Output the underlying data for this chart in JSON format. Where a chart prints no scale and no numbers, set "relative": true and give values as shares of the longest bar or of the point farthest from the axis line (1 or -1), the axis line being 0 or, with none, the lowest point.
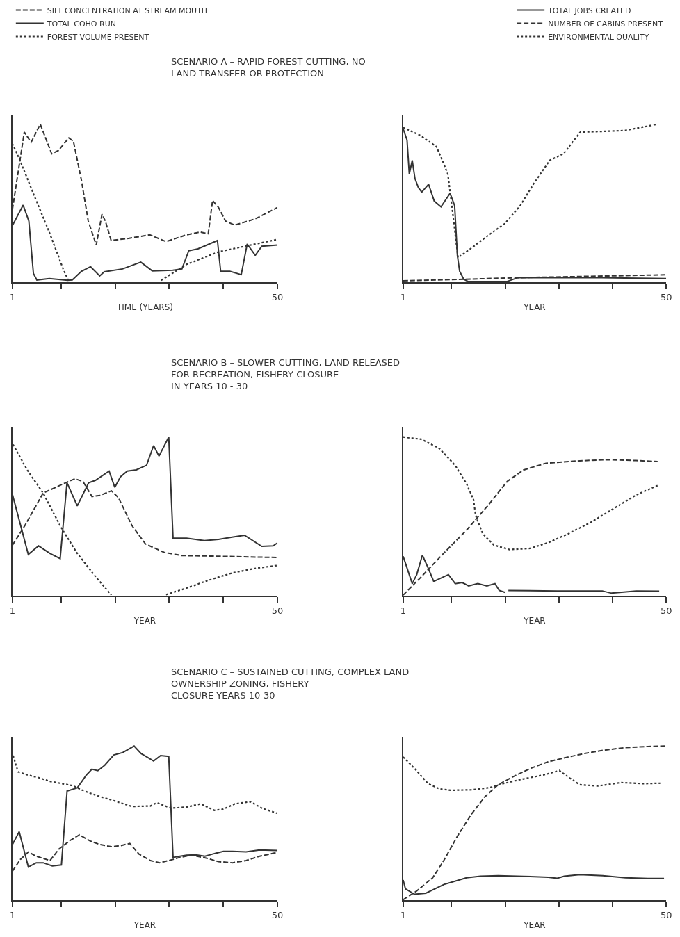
{
  "chart_data": [
    {
      "type": "line",
      "title": "SCENARIO A – RAPID FOREST CUTTING, NO\nLAND TRANSFER OR PROTECTION",
      "xlabel": "TIME (YEARS)",
      "relative": true,
      "xlim": [
        1,
        50
      ],
      "xticks": [
        1,
        {
          "value": 10,
          "label": null
        },
        {
          "value": 20,
          "label": null
        },
        {
          "value": 30,
          "label": null
        },
        {
          "value": 40,
          "label": null
        },
        50
      ],
      "tick_labels": "x",
      "legend": "top left",
      "series": [
        {
          "name": "SILT CONCENTRATION AT STREAM MOUTH",
          "color": "#333333",
          "line_style": "dashed",
          "x": [
            1,
            3.2,
            4.46,
            6.15,
            8.27,
            9.53,
            11.43,
            12.28,
            13.76,
            15.02,
            16.5,
            17.56,
            18.19,
            19.25,
            22.6,
            26.4,
            29.4,
            33.2,
            35.7,
            37.2,
            38.0,
            39.1,
            40.4,
            42.1,
            45.9,
            50
          ],
          "values": [
            0.459,
            0.95,
            0.885,
            1.0,
            0.812,
            0.834,
            0.913,
            0.892,
            0.646,
            0.387,
            0.235,
            0.43,
            0.387,
            0.264,
            0.278,
            0.3,
            0.257,
            0.3,
            0.317,
            0.307,
            0.517,
            0.473,
            0.387,
            0.361,
            0.401,
            0.473
          ]
        },
        {
          "name": "TOTAL COHO RUN",
          "color": "#333333",
          "line_style": "solid",
          "x": [
            1,
            2.99,
            4.04,
            4.89,
            5.52,
            7.84,
            11.22,
            12.07,
            13.76,
            15.45,
            17.14,
            17.98,
            21.36,
            24.74,
            26.85,
            30.65,
            32.34,
            33.6,
            35.3,
            38.9,
            39.5,
            41.2,
            43.3,
            44.4,
            45.9,
            47.1,
            50
          ],
          "values": [
            0.358,
            0.488,
            0.387,
            0.055,
            0.014,
            0.023,
            0.012,
            0.014,
            0.069,
            0.098,
            0.04,
            0.066,
            0.084,
            0.127,
            0.072,
            0.076,
            0.084,
            0.199,
            0.211,
            0.264,
            0.069,
            0.069,
            0.048,
            0.242,
            0.17,
            0.228,
            0.235
          ]
        },
        {
          "name": "FOREST VOLUME PRESENT",
          "color": "#333333",
          "line_style": "dotted",
          "x": [
            1,
            2.35,
            4.89,
            7.84,
            10.38,
            11.43,
            20,
            28.5,
            33.2,
            39.1,
            50
          ],
          "values": [
            0.877,
            0.776,
            0.56,
            0.315,
            0.084,
            0.004,
            null,
            0.012,
            0.113,
            0.192,
            0.271
          ]
        }
      ]
    },
    {
      "type": "line",
      "xlabel": "YEAR",
      "relative": true,
      "xlim": [
        1,
        50
      ],
      "xticks": [
        1,
        {
          "value": 10,
          "label": null
        },
        {
          "value": 20,
          "label": null
        },
        {
          "value": 30,
          "label": null
        },
        {
          "value": 40,
          "label": null
        },
        50
      ],
      "tick_labels": "x",
      "legend": "top right",
      "series": [
        {
          "name": "TOTAL JOBS CREATED",
          "color": "#333333",
          "line_style": "solid",
          "x": [
            1,
            1.72,
            2.14,
            2.69,
            3.2,
            3.83,
            4.46,
            5.73,
            6.79,
            8.05,
            9.74,
            10.59,
            11.1,
            11.52,
            12.28,
            13.12,
            20.3,
            22.4,
            29.6,
            38.0,
            42.3,
            50
          ],
          "values": [
            0.971,
            0.9,
            0.685,
            0.771,
            0.656,
            0.599,
            0.57,
            0.62,
            0.513,
            0.477,
            0.563,
            0.484,
            0.169,
            0.069,
            0.019,
            0.004,
            0.004,
            0.029,
            0.029,
            0.029,
            0.026,
            0.023
          ]
        },
        {
          "name": "NUMBER OF CABINS PRESENT",
          "color": "#333333",
          "line_style": "dashed",
          "x": [
            1,
            12.7,
            22.8,
            50
          ],
          "values": [
            0.009,
            0.019,
            0.029,
            0.047
          ]
        },
        {
          "name": "ENVIRONMENTAL QUALITY",
          "color": "#333333",
          "line_style": "dotted",
          "x": [
            1,
            4.25,
            7.21,
            8.48,
            9.32,
            10.17,
            11.22,
            13.55,
            16.9,
            19.9,
            22.8,
            25.4,
            28.3,
            30.9,
            34.0,
            38.0,
            42.3,
            48.4
          ],
          "values": [
            0.979,
            0.928,
            0.857,
            0.756,
            0.685,
            0.456,
            0.155,
            0.212,
            0.298,
            0.37,
            0.484,
            0.628,
            0.771,
            0.814,
            0.95,
            0.954,
            0.96,
            1.0
          ]
        }
      ]
    },
    {
      "type": "line",
      "title": "SCENARIO B – SLOWER CUTTING, LAND RELEASED\nFOR RECREATION, FISHERY CLOSURE\nIN YEARS 10 - 30",
      "xlabel": "YEAR",
      "relative": true,
      "xlim": [
        1,
        50
      ],
      "xticks": [
        1,
        {
          "value": 10,
          "label": null
        },
        {
          "value": 20,
          "label": null
        },
        {
          "value": 30,
          "label": null
        },
        {
          "value": 40,
          "label": null
        },
        50
      ],
      "tick_labels": "x",
      "series": [
        {
          "color": "#333333",
          "line_style": "solid",
          "x": [
            1,
            3.94,
            5.84,
            7.94,
            9.83,
            11.09,
            12.99,
            15.09,
            16.35,
            18.88,
            19.93,
            20.98,
            22.24,
            23.9,
            25.8,
            27.1,
            28.1,
            29.9,
            30.7,
            33.2,
            36.5,
            39.1,
            41.6,
            43.9,
            47.1,
            49.2,
            50
          ],
          "values": [
            0.639,
            0.26,
            0.314,
            0.267,
            0.234,
            0.712,
            0.566,
            0.712,
            0.727,
            0.785,
            0.683,
            0.749,
            0.785,
            0.793,
            0.822,
            0.946,
            0.88,
            1.0,
            0.362,
            0.362,
            0.347,
            0.355,
            0.369,
            0.381,
            0.311,
            0.314,
            0.333
          ]
        },
        {
          "color": "#333333",
          "line_style": "dashed",
          "x": [
            1,
            3.31,
            6.68,
            10.88,
            12.57,
            14.04,
            15.72,
            17.19,
            19.3,
            20.6,
            23.1,
            25.6,
            29.0,
            32.3,
            37.4,
            43.7,
            50
          ],
          "values": [
            0.318,
            0.442,
            0.647,
            0.712,
            0.737,
            0.72,
            0.625,
            0.632,
            0.661,
            0.618,
            0.442,
            0.326,
            0.274,
            0.253,
            0.25,
            0.245,
            0.241
          ]
        },
        {
          "color": "#333333",
          "line_style": "dotted",
          "x": [
            1.13,
            3.73,
            6.68,
            10.04,
            12.99,
            16.35,
            19.3,
            25,
            29.4,
            33.2,
            37.4,
            41.6,
            45.8,
            50
          ],
          "values": [
            0.953,
            0.793,
            0.647,
            0.428,
            0.267,
            0.121,
            0.004,
            null,
            0.007,
            0.048,
            0.099,
            0.143,
            0.172,
            0.191
          ]
        }
      ]
    },
    {
      "type": "line",
      "xlabel": "YEAR",
      "relative": true,
      "xlim": [
        1,
        50
      ],
      "xticks": [
        1,
        {
          "value": 10,
          "label": null
        },
        {
          "value": 20,
          "label": null
        },
        {
          "value": 30,
          "label": null
        },
        {
          "value": 40,
          "label": null
        },
        50
      ],
      "tick_labels": "x",
      "series": [
        {
          "color": "#333333",
          "line_style": "solid",
          "x": [
            1,
            2.69,
            3.53,
            4.58,
            5.64,
            6.69,
            9.43,
            10.7,
            12.0,
            13.2,
            14.9,
            16.6,
            18.1,
            18.9,
            20.0,
            20.3,
            20.6,
            29.7,
            38.1,
            39.8,
            44.4,
            48.7
          ],
          "values": [
            0.248,
            0.076,
            0.133,
            0.255,
            0.176,
            0.09,
            0.133,
            0.076,
            0.083,
            0.062,
            0.076,
            0.062,
            0.076,
            0.033,
            0.021,
            null,
            0.033,
            0.03,
            0.03,
            0.016,
            0.03,
            0.029
          ]
        },
        {
          "color": "#333333",
          "line_style": "dashed",
          "x": [
            1,
            4.37,
            8.59,
            12.8,
            17.0,
            20.4,
            23.4,
            27.6,
            33.9,
            39.0,
            44.4,
            48.4
          ],
          "values": [
            0.004,
            0.119,
            0.269,
            0.413,
            0.577,
            0.721,
            0.792,
            0.835,
            0.85,
            0.857,
            0.852,
            0.845
          ]
        },
        {
          "color": "#333333",
          "line_style": "dotted",
          "x": [
            1,
            4.37,
            7.75,
            10.7,
            12.8,
            14.1,
            14.5,
            15.8,
            17.9,
            20.8,
            24.6,
            28.0,
            31.8,
            36.0,
            40.2,
            44.4,
            48.7
          ],
          "values": [
            1.0,
            0.986,
            0.928,
            0.821,
            0.706,
            0.606,
            0.506,
            0.391,
            0.319,
            0.291,
            0.298,
            0.334,
            0.391,
            0.463,
            0.549,
            0.635,
            0.699
          ]
        }
      ]
    },
    {
      "type": "line",
      "title": "SCENARIO C – SUSTAINED CUTTING, COMPLEX LAND\nOWNERSHIP ZONING, FISHERY\nCLOSURE YEARS 10-30",
      "xlabel": "YEAR",
      "relative": true,
      "xlim": [
        1,
        50
      ],
      "xticks": [
        1,
        {
          "value": 10,
          "label": null
        },
        {
          "value": 20,
          "label": null
        },
        {
          "value": 30,
          "label": null
        },
        {
          "value": 40,
          "label": null
        },
        50
      ],
      "tick_labels": "x",
      "series": [
        {
          "color": "#333333",
          "line_style": "solid",
          "x": [
            1,
            2.26,
            3.95,
            5.42,
            6.69,
            8.37,
            10.06,
            11.11,
            13.0,
            14.7,
            15.7,
            16.8,
            18.06,
            19.75,
            21.4,
            23.5,
            24.8,
            26.1,
            27.1,
            28.4,
            29.9,
            30.7,
            33.2,
            34.9,
            36.6,
            38.7,
            40.0,
            41.7,
            44.2,
            46.7,
            50
          ],
          "values": [
            0.361,
            0.444,
            0.215,
            0.243,
            0.243,
            0.222,
            0.229,
            0.708,
            0.729,
            0.813,
            0.85,
            0.84,
            0.875,
            0.942,
            0.958,
            1.0,
            0.951,
            0.924,
            0.903,
            0.938,
            0.933,
            0.278,
            0.292,
            0.294,
            0.285,
            0.306,
            0.317,
            0.317,
            0.313,
            0.326,
            0.322
          ]
        },
        {
          "color": "#333333",
          "line_style": "dashed",
          "x": [
            1,
            2.47,
            3.95,
            5.42,
            7.95,
            9.64,
            11.74,
            13.4,
            15.5,
            17.2,
            19.3,
            21.0,
            22.7,
            24.4,
            26.5,
            28.2,
            29.9,
            32.0,
            34.1,
            37.1,
            39.1,
            41.7,
            44.2,
            46.7,
            50
          ],
          "values": [
            0.188,
            0.264,
            0.313,
            0.285,
            0.257,
            0.333,
            0.389,
            0.424,
            0.382,
            0.361,
            0.347,
            0.354,
            0.368,
            0.299,
            0.257,
            0.243,
            0.257,
            0.278,
            0.292,
            0.271,
            0.25,
            0.243,
            0.257,
            0.285,
            0.31
          ]
        },
        {
          "color": "#333333",
          "line_style": "dotted",
          "x": [
            1.13,
            2.05,
            3.74,
            5.85,
            7.95,
            12.2,
            13.8,
            16.4,
            19.7,
            23.1,
            26.5,
            27.7,
            30.3,
            33.2,
            35.8,
            38.3,
            40.0,
            42.1,
            45.0,
            47.1,
            50
          ],
          "values": [
            0.938,
            0.833,
            0.813,
            0.795,
            0.771,
            0.743,
            0.715,
            0.681,
            0.646,
            0.608,
            0.611,
            0.632,
            0.597,
            0.604,
            0.625,
            0.583,
            0.59,
            0.625,
            0.639,
            0.597,
            0.563
          ]
        }
      ]
    },
    {
      "type": "line",
      "xlabel": "YEAR",
      "relative": true,
      "xlim": [
        1,
        50
      ],
      "xticks": [
        1,
        {
          "value": 10,
          "label": null
        },
        {
          "value": 20,
          "label": null
        },
        {
          "value": 30,
          "label": null
        },
        {
          "value": 40,
          "label": null
        },
        50
      ],
      "tick_labels": "x",
      "series": [
        {
          "color": "#333333",
          "line_style": "solid",
          "x": [
            1,
            1.42,
            3.11,
            5.22,
            8.6,
            12.8,
            15.4,
            18.7,
            23.4,
            28.0,
            29.7,
            31.0,
            33.9,
            38.2,
            42.4,
            46.6,
            49.6
          ],
          "values": [
            0.131,
            0.074,
            0.038,
            0.045,
            0.102,
            0.145,
            0.156,
            0.159,
            0.155,
            0.149,
            0.142,
            0.156,
            0.166,
            0.159,
            0.145,
            0.141,
            0.141
          ]
        },
        {
          "color": "#333333",
          "line_style": "dashed",
          "x": [
            1,
            3.53,
            6.49,
            8.6,
            11.1,
            13.7,
            16.2,
            18.7,
            21.3,
            24.7,
            28.0,
            31.4,
            34.8,
            38.2,
            42.4,
            46.6,
            50
          ],
          "values": [
            0.003,
            0.06,
            0.145,
            0.259,
            0.415,
            0.557,
            0.67,
            0.749,
            0.798,
            0.855,
            0.898,
            0.926,
            0.952,
            0.972,
            0.99,
            0.997,
            1.0
          ]
        },
        {
          "color": "#333333",
          "line_style": "dotted",
          "x": [
            1,
            3.11,
            5.65,
            7.76,
            9.87,
            13.7,
            17.1,
            19.6,
            23.0,
            27.2,
            30.1,
            31.8,
            33.9,
            37.3,
            41.6,
            45.8,
            48.9
          ],
          "values": [
            0.929,
            0.855,
            0.756,
            0.722,
            0.713,
            0.716,
            0.73,
            0.756,
            0.784,
            0.813,
            0.841,
            0.798,
            0.749,
            0.741,
            0.763,
            0.756,
            0.759
          ]
        }
      ]
    }
  ]
}
